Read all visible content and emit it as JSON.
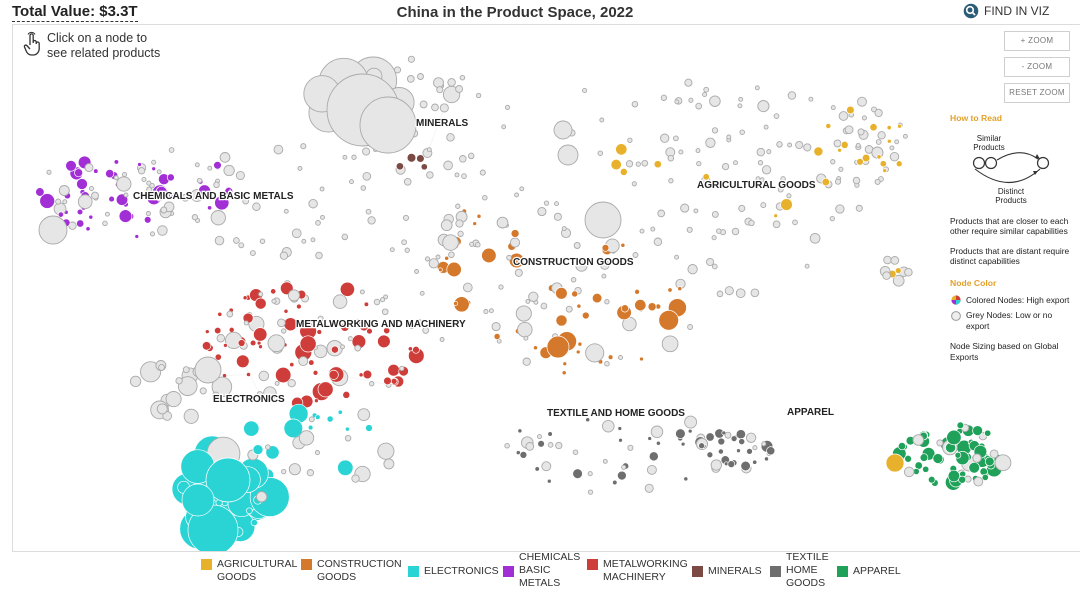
{
  "header": {
    "total_value": "Total Value: $3.3T",
    "title": "China in the Product Space, 2022",
    "find_label": "FIND IN VIZ"
  },
  "hint": {
    "line1": "Click on a node to",
    "line2": "see related products"
  },
  "zoom": {
    "zoom_in": "+ ZOOM",
    "zoom_out": "- ZOOM",
    "reset": "RESET ZOOM"
  },
  "how_to_read": {
    "title": "How to Read",
    "similar": "Similar Products",
    "distinct": "Distinct Products",
    "closer_text": "Products that are closer to each other require similar capabilities",
    "distant_text": "Products that are distant require distinct capabilities",
    "node_color_title": "Node Color",
    "colored_nodes": "Colored Nodes: High export",
    "grey_nodes": "Grey Nodes: Low or no export",
    "sizing_text": "Node Sizing based on Global Exports"
  },
  "clusters": [
    {
      "label": "MINERALS"
    },
    {
      "label": "CHEMICALS AND BASIC METALS"
    },
    {
      "label": "AGRICULTURAL GOODS"
    },
    {
      "label": "CONSTRUCTION GOODS"
    },
    {
      "label": "METALWORKING AND MACHINERY"
    },
    {
      "label": "ELECTRONICS"
    },
    {
      "label": "TEXTILE AND HOME GOODS"
    },
    {
      "label": "APPAREL"
    }
  ],
  "legend": [
    {
      "l1": "AGRICULTURAL",
      "l2": "GOODS",
      "l3": "",
      "color": "#E8B12B"
    },
    {
      "l1": "CONSTRUCTION",
      "l2": "GOODS",
      "l3": "",
      "color": "#D4782B"
    },
    {
      "l1": "ELECTRONICS",
      "l2": "",
      "l3": "",
      "color": "#2AD4D4"
    },
    {
      "l1": "CHEMICALS",
      "l2": "BASIC",
      "l3": "METALS",
      "color": "#A22ED6"
    },
    {
      "l1": "METALWORKING",
      "l2": "MACHINERY",
      "l3": "",
      "color": "#CE3D3A"
    },
    {
      "l1": "MINERALS",
      "l2": "",
      "l3": "",
      "color": "#7B4A44"
    },
    {
      "l1": "TEXTILE",
      "l2": "HOME",
      "l3": "GOODS",
      "color": "#6E6E6E"
    },
    {
      "l1": "APPAREL",
      "l2": "",
      "l3": "",
      "color": "#1FA15A"
    }
  ],
  "colors": {
    "grey_node": "#e6e6e6",
    "grey_stroke": "#aaaaaa"
  }
}
